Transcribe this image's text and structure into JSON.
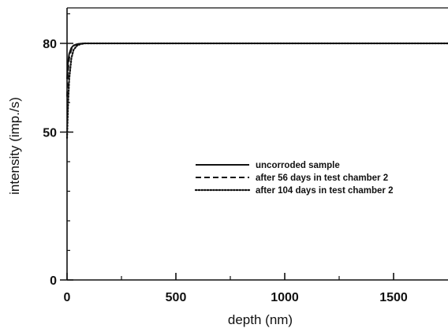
{
  "chart_data": {
    "type": "line",
    "title": "",
    "xlabel": "depth (nm)",
    "ylabel": "intensity (imp./s)",
    "xlim": [
      0,
      1750
    ],
    "ylim": [
      0,
      92
    ],
    "x_ticks": [
      0,
      500,
      1000,
      1500
    ],
    "x_tick_labels": [
      "0",
      "500",
      "1000",
      "1500"
    ],
    "y_ticks": [
      0,
      50,
      80
    ],
    "y_tick_labels": [
      "0",
      "50",
      "80"
    ],
    "grid": false,
    "legend_position": "center-right",
    "series": [
      {
        "name": "uncorroded sample",
        "line_style": "solid",
        "x": [
          0,
          5,
          10,
          20,
          30,
          45,
          60,
          80,
          120,
          200,
          500,
          1000,
          1500,
          1750
        ],
        "y": [
          68,
          74,
          76.5,
          78.5,
          79.3,
          79.7,
          79.9,
          80,
          80,
          80,
          80,
          80,
          80,
          80
        ]
      },
      {
        "name": "after 56 days in test chamber 2",
        "line_style": "dashed",
        "x": [
          0,
          5,
          10,
          20,
          30,
          45,
          60,
          80,
          120,
          200,
          500,
          1000,
          1500,
          1750
        ],
        "y": [
          62,
          71,
          75,
          78,
          79.2,
          79.7,
          79.9,
          80,
          80,
          80,
          80,
          80,
          80,
          80
        ]
      },
      {
        "name": "after 104 days in test chamber 2",
        "line_style": "dotted",
        "x": [
          0,
          5,
          10,
          20,
          30,
          45,
          60,
          80,
          120,
          200,
          500,
          1000,
          1500,
          1750
        ],
        "y": [
          48,
          60,
          68,
          75,
          77.8,
          79.2,
          79.7,
          80,
          80,
          80,
          80,
          80,
          80,
          80
        ]
      }
    ]
  }
}
